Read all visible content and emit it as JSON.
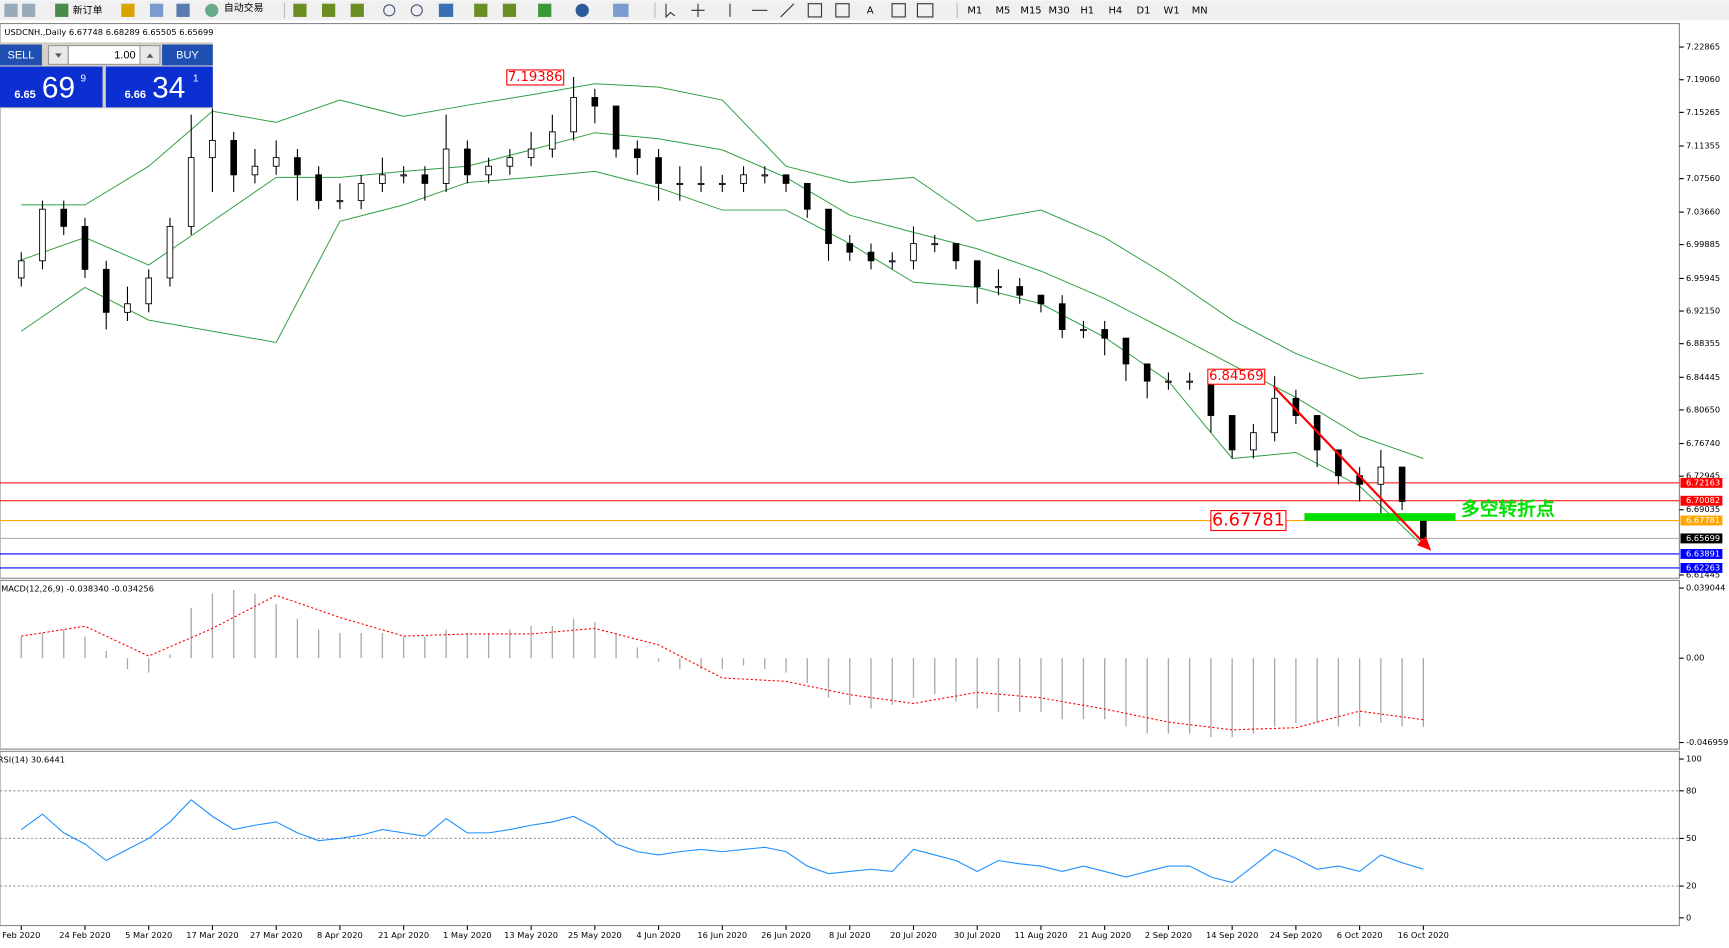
{
  "toolbar": {
    "buttons": [
      "新订单",
      "自动交易"
    ],
    "tools": [
      "A"
    ],
    "timeframes": [
      "M1",
      "M5",
      "M15",
      "M30",
      "H1",
      "H4",
      "D1",
      "W1",
      "MN"
    ]
  },
  "one_click": {
    "sell": "SELL",
    "buy": "BUY",
    "lot": "1.00",
    "bid": {
      "prefix": "6.65",
      "big": "69",
      "small": "9"
    },
    "ask": {
      "prefix": "6.66",
      "big": "34",
      "small": "1"
    }
  },
  "chart_data": [
    {
      "type": "candlestick",
      "title": "USDCNH.,Daily 6.67748 6.68289 6.65505 6.65699",
      "open": [
        6.96,
        6.98,
        7.04,
        7.02,
        6.97,
        6.92,
        6.93,
        6.96,
        7.02,
        7.1,
        7.12,
        7.08,
        7.09,
        7.1,
        7.08,
        7.05,
        7.05,
        7.07,
        7.08,
        7.08,
        7.07,
        7.11,
        7.08,
        7.09,
        7.1,
        7.11,
        7.13,
        7.17,
        7.16,
        7.11,
        7.1,
        7.07,
        7.07,
        7.07,
        7.07,
        7.08,
        7.08,
        7.07,
        7.04,
        7.0,
        6.99,
        6.98,
        6.98,
        7.0,
        7.0,
        6.98,
        6.95,
        6.95,
        6.94,
        6.93,
        6.9,
        6.9,
        6.89,
        6.86,
        6.84,
        6.84,
        6.84,
        6.8,
        6.76,
        6.78,
        6.82,
        6.8,
        6.76,
        6.73,
        6.72,
        6.74,
        6.67748
      ],
      "high": [
        6.99,
        7.05,
        7.05,
        7.03,
        6.98,
        6.95,
        6.97,
        7.03,
        7.15,
        7.16,
        7.13,
        7.11,
        7.12,
        7.11,
        7.09,
        7.07,
        7.08,
        7.1,
        7.09,
        7.09,
        7.15,
        7.12,
        7.1,
        7.11,
        7.13,
        7.15,
        7.19386,
        7.18,
        7.16,
        7.12,
        7.11,
        7.09,
        7.09,
        7.08,
        7.09,
        7.09,
        7.08,
        7.07,
        7.04,
        7.01,
        7.0,
        6.99,
        7.02,
        7.01,
        7.0,
        6.98,
        6.97,
        6.96,
        6.94,
        6.94,
        6.91,
        6.91,
        6.89,
        6.86,
        6.85,
        6.85,
        6.84,
        6.8,
        6.79,
        6.84569,
        6.83,
        6.8,
        6.76,
        6.74,
        6.76,
        6.74,
        6.68289
      ],
      "low": [
        6.95,
        6.97,
        7.01,
        6.96,
        6.9,
        6.91,
        6.92,
        6.95,
        7.01,
        7.06,
        7.06,
        7.07,
        7.08,
        7.05,
        7.04,
        7.04,
        7.04,
        7.06,
        7.07,
        7.05,
        7.06,
        7.07,
        7.07,
        7.08,
        7.09,
        7.1,
        7.12,
        7.14,
        7.1,
        7.08,
        7.05,
        7.05,
        7.06,
        7.06,
        7.06,
        7.07,
        7.06,
        7.03,
        6.98,
        6.98,
        6.97,
        6.97,
        6.97,
        6.99,
        6.97,
        6.93,
        6.94,
        6.93,
        6.92,
        6.89,
        6.89,
        6.87,
        6.84,
        6.82,
        6.83,
        6.83,
        6.78,
        6.75,
        6.75,
        6.77,
        6.79,
        6.74,
        6.72,
        6.7,
        6.68,
        6.69,
        6.65505
      ],
      "close": [
        6.98,
        7.04,
        7.02,
        6.97,
        6.92,
        6.93,
        6.96,
        7.02,
        7.1,
        7.12,
        7.08,
        7.09,
        7.1,
        7.08,
        7.05,
        7.05,
        7.07,
        7.08,
        7.08,
        7.07,
        7.11,
        7.08,
        7.09,
        7.1,
        7.11,
        7.13,
        7.17,
        7.16,
        7.11,
        7.1,
        7.07,
        7.07,
        7.07,
        7.07,
        7.08,
        7.08,
        7.07,
        7.04,
        7.0,
        6.99,
        6.98,
        6.98,
        7.0,
        7.0,
        6.98,
        6.95,
        6.95,
        6.94,
        6.93,
        6.9,
        6.9,
        6.89,
        6.86,
        6.84,
        6.84,
        6.84,
        6.8,
        6.76,
        6.78,
        6.82,
        6.8,
        6.76,
        6.73,
        6.72,
        6.74,
        6.7,
        6.65699
      ],
      "bands": [
        {
          "color": "#2ea043",
          "x": [
            0,
            3,
            6,
            9,
            12,
            15,
            18,
            21,
            24,
            27,
            30,
            33,
            36,
            39,
            42,
            45,
            48,
            51,
            54,
            57,
            60,
            63,
            66
          ],
          "values": [
            7.045,
            7.045,
            7.09,
            7.154,
            7.141,
            7.167,
            7.148,
            7.161,
            7.173,
            7.186,
            7.182,
            7.167,
            7.09,
            7.071,
            7.077,
            7.026,
            7.039,
            7.007,
            6.962,
            6.911,
            6.872,
            6.843,
            6.849
          ]
        },
        {
          "color": "#2ea043",
          "x": [
            0,
            3,
            6,
            9,
            12,
            15,
            18,
            21,
            24,
            27,
            30,
            33,
            36,
            39,
            42,
            45,
            48,
            51,
            54,
            57,
            60,
            63,
            66
          ],
          "values": [
            6.981,
            7.007,
            6.975,
            7.026,
            7.077,
            7.077,
            7.084,
            7.09,
            7.109,
            7.129,
            7.122,
            7.109,
            7.077,
            7.033,
            7.013,
            6.994,
            6.968,
            6.936,
            6.898,
            6.859,
            6.821,
            6.776,
            6.75
          ]
        },
        {
          "color": "#2ea043",
          "x": [
            0,
            3,
            6,
            9,
            12,
            15,
            18,
            21,
            24,
            27,
            30,
            33,
            36,
            39,
            42,
            45,
            48,
            51,
            54,
            57,
            60,
            63,
            66
          ],
          "values": [
            6.898,
            6.949,
            6.911,
            6.898,
            6.885,
            7.026,
            7.045,
            7.071,
            7.077,
            7.084,
            7.065,
            7.039,
            7.039,
            7.0,
            6.955,
            6.949,
            6.93,
            6.891,
            6.84,
            6.75,
            6.757,
            6.718,
            6.648
          ]
        }
      ],
      "levels": [
        {
          "value": 6.72163,
          "color": "#ff0000"
        },
        {
          "value": 6.70082,
          "color": "#ff0000"
        },
        {
          "value": 6.67781,
          "color": "#ffa500"
        },
        {
          "value": 6.65699,
          "color": "#000000"
        },
        {
          "value": 6.63891,
          "color": "#0000ff"
        },
        {
          "value": 6.62263,
          "color": "#0000ff"
        }
      ],
      "annotations": [
        {
          "x": 26,
          "value": 7.19386
        },
        {
          "x": 59,
          "value": 6.84569
        },
        {
          "x": 60,
          "value": 6.67781
        }
      ],
      "note": "多空转折点",
      "ylim": [
        6.612,
        7.247
      ],
      "yticks": [
        7.22865,
        {
          "value": 7.1906,
          "label": "7.19060"
        },
        7.15265,
        7.11355,
        {
          "value": 7.0756,
          "label": "7.07560"
        },
        {
          "value": 7.0366,
          "label": "7.03660"
        },
        6.99885,
        6.95945,
        {
          "value": 6.9215,
          "label": "6.92150"
        },
        6.88355,
        6.84445,
        {
          "value": 6.8065,
          "label": "6.80650"
        },
        {
          "value": 6.7674,
          "label": "6.76740"
        },
        6.72945,
        6.69035,
        6.61445
      ]
    },
    {
      "type": "macd",
      "title": "MACD(12,26,9) -0.038340 -0.034256",
      "histogram": [
        0.012,
        0.014,
        0.016,
        0.012,
        0.004,
        -0.006,
        -0.008,
        0.002,
        0.028,
        0.036,
        0.038,
        0.036,
        0.03,
        0.022,
        0.016,
        0.014,
        0.014,
        0.014,
        0.012,
        0.012,
        0.016,
        0.014,
        0.014,
        0.016,
        0.018,
        0.018,
        0.022,
        0.02,
        0.014,
        0.006,
        -0.002,
        -0.006,
        -0.006,
        -0.006,
        -0.004,
        -0.006,
        -0.008,
        -0.014,
        -0.022,
        -0.026,
        -0.028,
        -0.026,
        -0.022,
        -0.02,
        -0.024,
        -0.028,
        -0.03,
        -0.03,
        -0.03,
        -0.034,
        -0.034,
        -0.034,
        -0.038,
        -0.042,
        -0.042,
        -0.042,
        -0.044,
        -0.044,
        -0.042,
        -0.038,
        -0.036,
        -0.036,
        -0.038,
        -0.038,
        -0.036,
        -0.038,
        -0.03834
      ],
      "hist_color": "#a8a8a8",
      "signal": {
        "color": "#ff0000",
        "x": [
          0,
          3,
          6,
          9,
          12,
          15,
          18,
          21,
          24,
          27,
          30,
          33,
          36,
          39,
          42,
          45,
          48,
          51,
          54,
          57,
          60,
          63,
          66
        ],
        "values": [
          0.0123,
          0.0178,
          0.0012,
          0.0166,
          0.035,
          0.0227,
          0.0123,
          0.0135,
          0.0135,
          0.0166,
          0.0074,
          -0.011,
          -0.0129,
          -0.0203,
          -0.0252,
          -0.019,
          -0.0221,
          -0.0283,
          -0.0356,
          -0.0399,
          -0.0387,
          -0.0295,
          -0.034256
        ]
      },
      "ylim": [
        -0.0494,
        0.0427
      ],
      "yticks": [
        0.039044,
        {
          "value": 0,
          "label": "0.00"
        },
        -0.046959
      ]
    },
    {
      "type": "line",
      "title": "RSI(14) 30.6441",
      "color": "#1e90ff",
      "values": [
        55.6,
        65.3,
        53.5,
        46.5,
        36.1,
        43.1,
        50.0,
        60.4,
        74.3,
        63.9,
        55.6,
        58.3,
        60.4,
        53.5,
        48.6,
        50.0,
        52.1,
        55.6,
        53.5,
        51.4,
        62.5,
        53.5,
        53.5,
        55.6,
        58.3,
        60.4,
        63.9,
        56.9,
        46.5,
        41.7,
        39.6,
        41.7,
        43.1,
        41.7,
        43.1,
        44.4,
        41.7,
        32.6,
        27.8,
        29.2,
        30.6,
        29.2,
        43.1,
        39.6,
        36.1,
        29.2,
        36.1,
        34.0,
        32.6,
        29.2,
        32.6,
        29.2,
        25.7,
        29.2,
        32.6,
        32.6,
        25.7,
        22.2,
        32.6,
        43.1,
        37.5,
        30.6,
        32.6,
        29.2,
        39.6,
        34.7,
        30.6441
      ],
      "levels": [
        80,
        50,
        20
      ],
      "ylim": [
        0,
        100
      ],
      "yticks": [
        100,
        80,
        50,
        20,
        0
      ],
      "xlim": [
        -1,
        78
      ],
      "xticks": [
        {
          "value": 0,
          "label": "Feb 2020"
        },
        {
          "value": 3,
          "label": "24 Feb 2020"
        },
        {
          "value": 6,
          "label": "5 Mar 2020"
        },
        {
          "value": 9,
          "label": "17 Mar 2020"
        },
        {
          "value": 12,
          "label": "27 Mar 2020"
        },
        {
          "value": 15,
          "label": "8 Apr 2020"
        },
        {
          "value": 18,
          "label": "21 Apr 2020"
        },
        {
          "value": 21,
          "label": "1 May 2020"
        },
        {
          "value": 24,
          "label": "13 May 2020"
        },
        {
          "value": 27,
          "label": "25 May 2020"
        },
        {
          "value": 30,
          "label": "4 Jun 2020"
        },
        {
          "value": 33,
          "label": "16 Jun 2020"
        },
        {
          "value": 36,
          "label": "26 Jun 2020"
        },
        {
          "value": 39,
          "label": "8 Jul 2020"
        },
        {
          "value": 42,
          "label": "20 Jul 2020"
        },
        {
          "value": 45,
          "label": "30 Jul 2020"
        },
        {
          "value": 48,
          "label": "11 Aug 2020"
        },
        {
          "value": 51,
          "label": "21 Aug 2020"
        },
        {
          "value": 54,
          "label": "2 Sep 2020"
        },
        {
          "value": 57,
          "label": "14 Sep 2020"
        },
        {
          "value": 60,
          "label": "24 Sep 2020"
        },
        {
          "value": 63,
          "label": "6 Oct 2020"
        },
        {
          "value": 66,
          "label": "16 Oct 2020"
        }
      ]
    }
  ]
}
